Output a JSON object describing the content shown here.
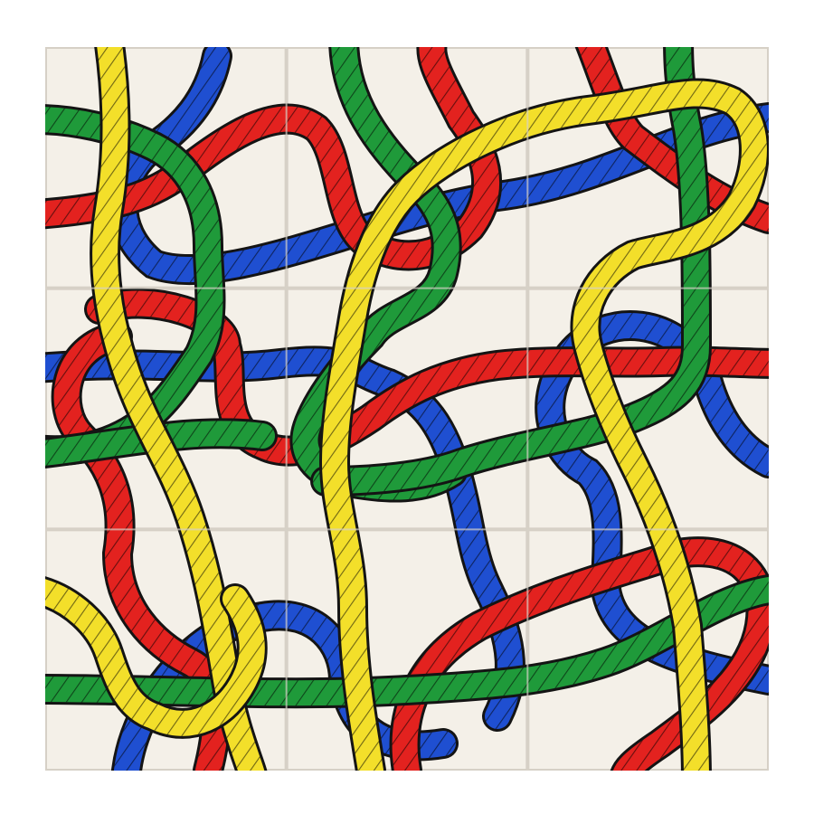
{
  "puzzle": {
    "grid_rows": 3,
    "grid_cols": 3,
    "tile_count": 9,
    "colors": {
      "background": "#ffffff",
      "tile": "#f4f0e8",
      "seam": "#d6d0c6",
      "red": "#e3221f",
      "blue": "#1f4fd1",
      "green": "#1f9a3a",
      "yellow": "#f3df2a",
      "outline": "#141414"
    },
    "ropes": [
      {
        "name": "blue-rope",
        "color": "blue"
      },
      {
        "name": "red-rope",
        "color": "red"
      },
      {
        "name": "green-rope",
        "color": "green"
      },
      {
        "name": "yellow-rope",
        "color": "yellow"
      }
    ]
  }
}
